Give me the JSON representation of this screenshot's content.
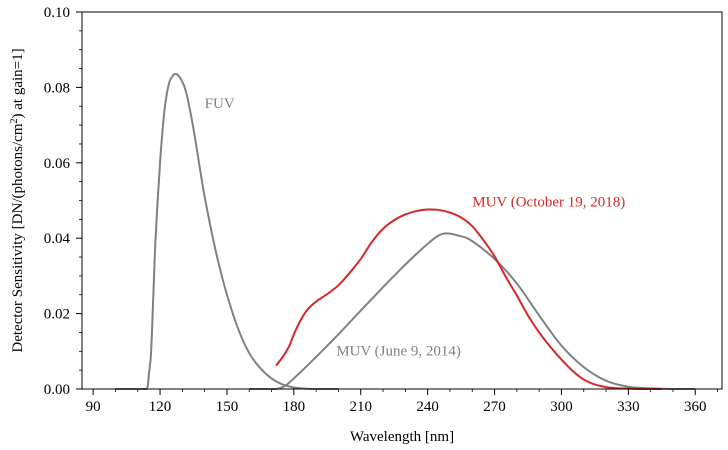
{
  "chart_data": {
    "type": "line",
    "xlabel": "Wavelength [nm]",
    "ylabel_main": "Detector Sensitivity [DN/(photons/cm",
    "ylabel_sup": "2",
    "ylabel_end": ") at gain=1]",
    "xlim": [
      85,
      372
    ],
    "ylim": [
      0,
      0.1
    ],
    "xticks": [
      90,
      120,
      150,
      180,
      210,
      240,
      270,
      300,
      330,
      360
    ],
    "xtick_labels": [
      "90",
      "120",
      "150",
      "180",
      "210",
      "240",
      "270",
      "300",
      "330",
      "360"
    ],
    "yticks": [
      0,
      0.02,
      0.04,
      0.06,
      0.08,
      0.1
    ],
    "ytick_labels": [
      "0.00",
      "0.02",
      "0.04",
      "0.06",
      "0.08",
      "0.10"
    ],
    "grid": false,
    "series": [
      {
        "name": "FUV",
        "color": "#808080",
        "x": [
          100,
          110,
          114,
          115,
          116,
          117,
          118,
          120,
          122,
          124,
          126,
          127,
          128,
          130,
          132,
          135,
          138,
          140,
          143,
          146,
          150,
          155,
          160,
          165,
          170,
          175,
          180,
          185,
          190,
          200
        ],
        "y": [
          0,
          0,
          0,
          0.004,
          0.01,
          0.025,
          0.04,
          0.06,
          0.074,
          0.081,
          0.0833,
          0.0835,
          0.0833,
          0.0815,
          0.078,
          0.069,
          0.058,
          0.051,
          0.042,
          0.034,
          0.025,
          0.016,
          0.0095,
          0.0055,
          0.0028,
          0.0012,
          0.0004,
          0.0001,
          0,
          0
        ]
      },
      {
        "name": "MUV (June 9, 2014)",
        "color": "#808080",
        "x": [
          160,
          168,
          172,
          176,
          180,
          190,
          200,
          210,
          220,
          230,
          240,
          247,
          255,
          260,
          270,
          280,
          290,
          300,
          310,
          320,
          330,
          340,
          350,
          360
        ],
        "y": [
          0,
          0,
          0,
          0.0008,
          0.0028,
          0.0085,
          0.0145,
          0.0208,
          0.027,
          0.033,
          0.0385,
          0.0412,
          0.0405,
          0.0392,
          0.0345,
          0.028,
          0.0195,
          0.0115,
          0.0058,
          0.0022,
          0.0006,
          0.00015,
          0,
          0
        ]
      },
      {
        "name": "MUV (October 19, 2018)",
        "color": "#d62728",
        "x": [
          172,
          175,
          178,
          180,
          183,
          186,
          190,
          195,
          200,
          205,
          210,
          215,
          220,
          225,
          230,
          235,
          240,
          245,
          250,
          255,
          260,
          265,
          270,
          275,
          280,
          285,
          290,
          295,
          300,
          305,
          310,
          315,
          320,
          325,
          330,
          335,
          340,
          345
        ],
        "y": [
          0.0062,
          0.0085,
          0.0115,
          0.0145,
          0.0182,
          0.021,
          0.0232,
          0.0252,
          0.0275,
          0.0308,
          0.0345,
          0.039,
          0.0425,
          0.0448,
          0.0463,
          0.0472,
          0.0476,
          0.0475,
          0.0468,
          0.0455,
          0.0432,
          0.0395,
          0.0352,
          0.0298,
          0.0248,
          0.0195,
          0.015,
          0.0112,
          0.0078,
          0.0048,
          0.0025,
          0.0012,
          0.0005,
          0.0002,
          0.0001,
          0,
          0,
          0
        ]
      }
    ],
    "annotations": [
      {
        "text": "FUV",
        "x": 140,
        "y": 0.0758,
        "color": "#808080"
      },
      {
        "text": "MUV (October 19, 2018)",
        "x": 260,
        "y": 0.0498,
        "color": "#d62728"
      },
      {
        "text": "MUV (June 9, 2014)",
        "x": 199,
        "y": 0.0102,
        "color": "#808080"
      }
    ]
  }
}
